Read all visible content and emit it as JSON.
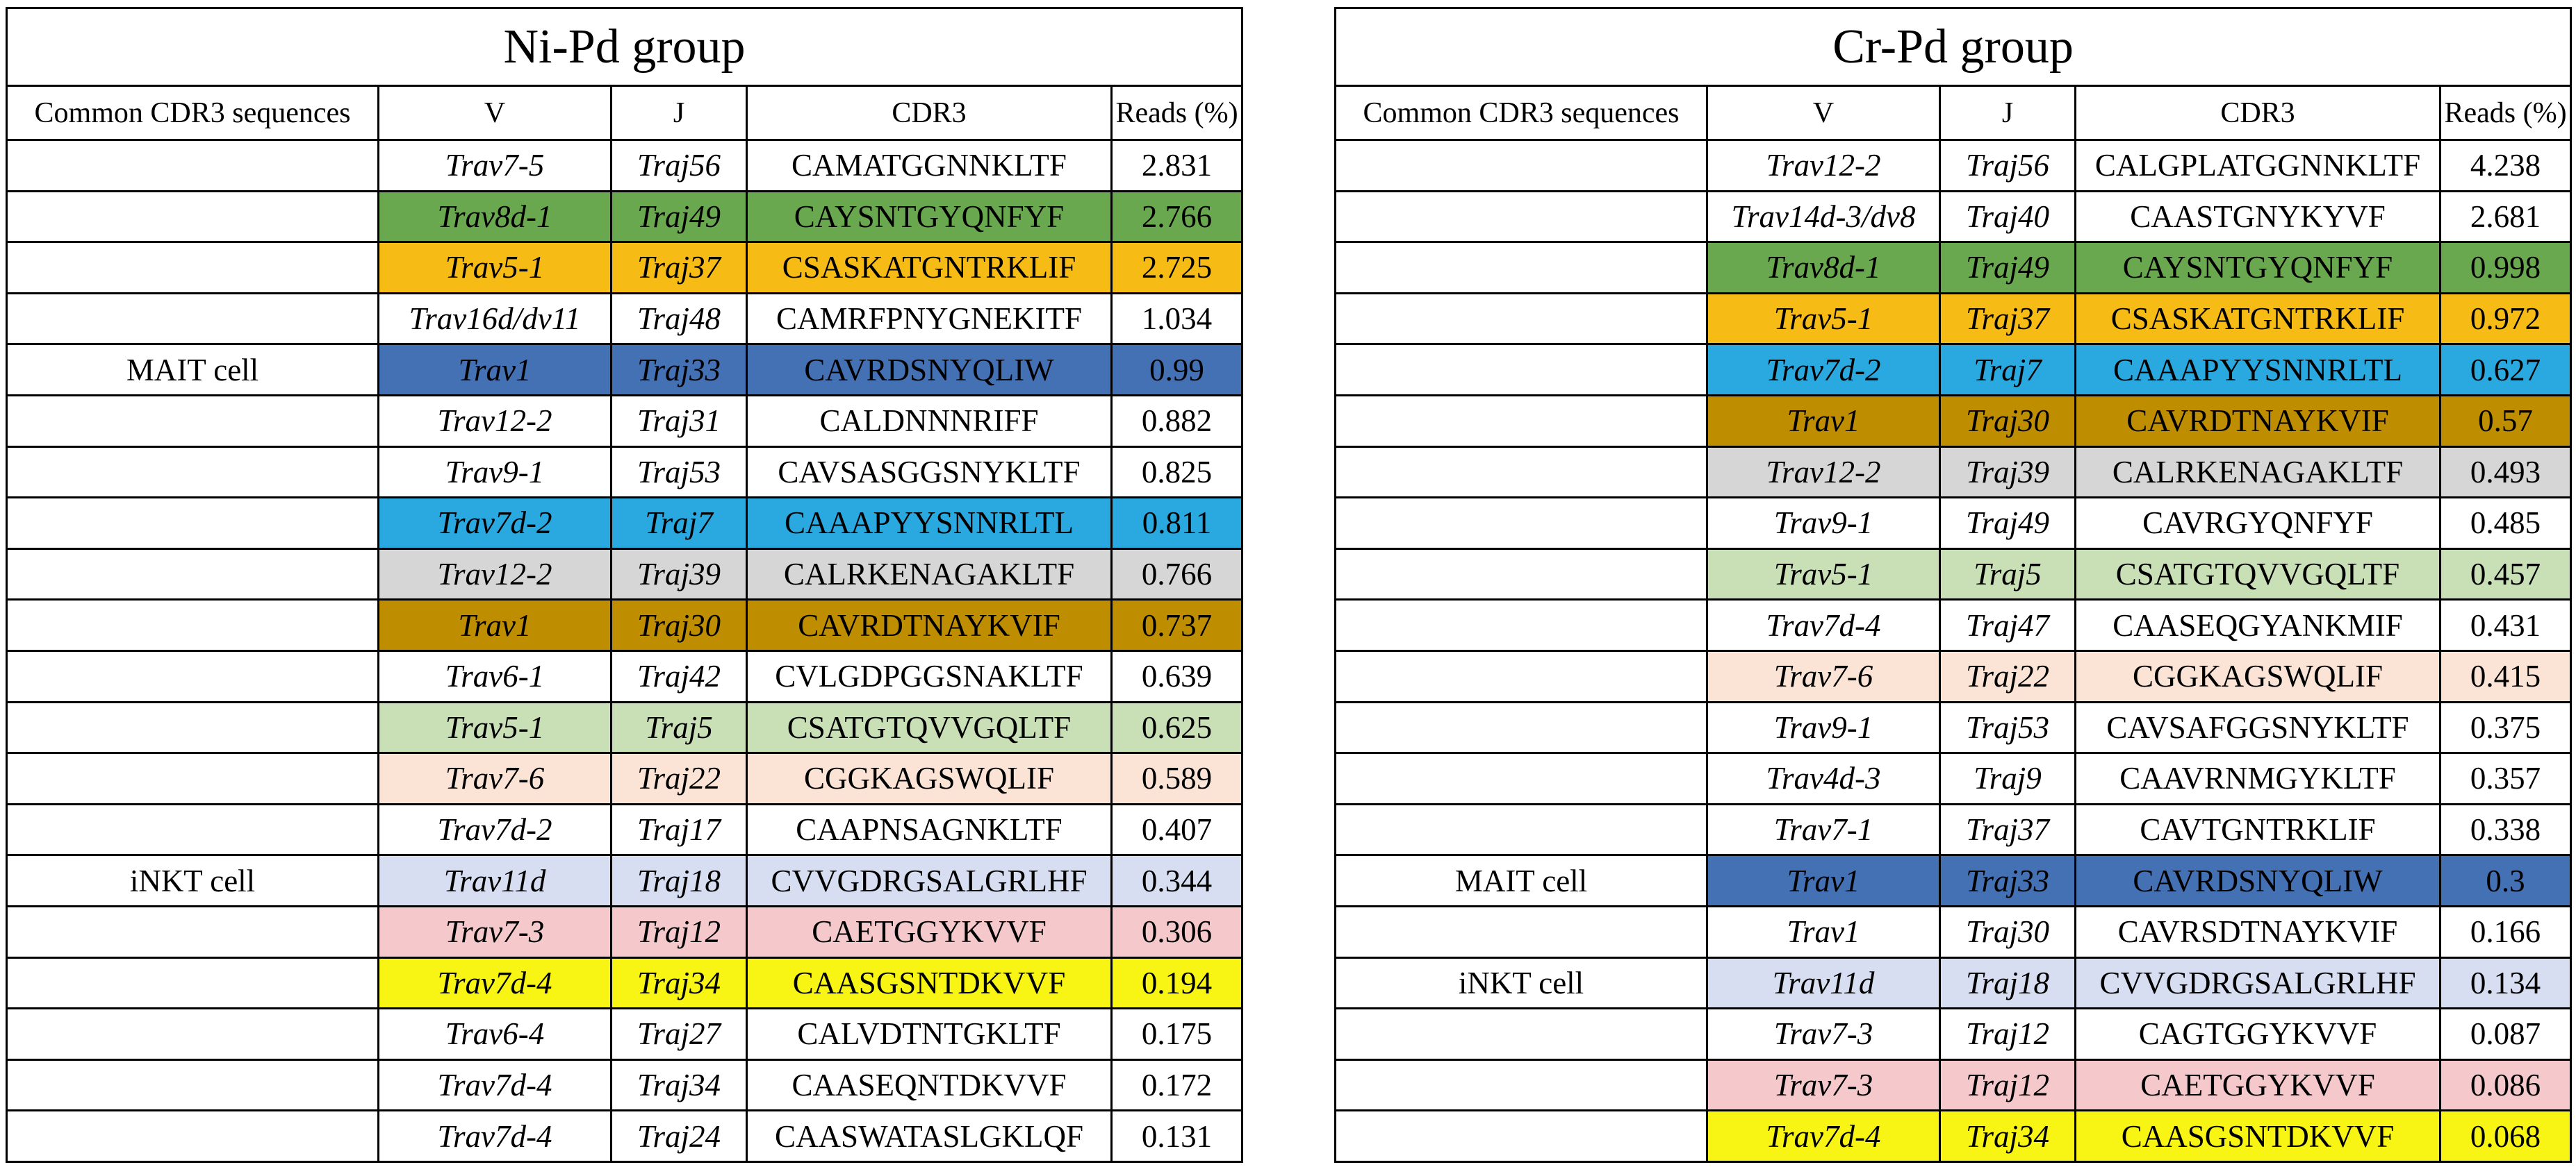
{
  "page": {
    "background": "#ffffff"
  },
  "highlight_palette": {
    "green": "#6AA84F",
    "amber": "#F6BB14",
    "mait_blue": "#4470B4",
    "cyan": "#29A9E0",
    "gray": "#D6D6D6",
    "gold": "#BE8E00",
    "light_green": "#C9E0B7",
    "peach": "#FBE4D5",
    "lavender": "#D7DEF1",
    "pink": "#F5C8CB",
    "yellow": "#F8F514"
  },
  "tables": [
    {
      "title": "Ni-Pd group",
      "columns": [
        "Common CDR3 sequences",
        "V",
        "J",
        "CDR3",
        "Reads (%)"
      ],
      "rows": [
        {
          "label": "",
          "v": "Trav7-5",
          "j": "Traj56",
          "cdr3": "CAMATGGNNKLTF",
          "reads": "2.831",
          "highlight": ""
        },
        {
          "label": "",
          "v": "Trav8d-1",
          "j": "Traj49",
          "cdr3": "CAYSNTGYQNFYF",
          "reads": "2.766",
          "highlight": "#6AA84F"
        },
        {
          "label": "",
          "v": "Trav5-1",
          "j": "Traj37",
          "cdr3": "CSASKATGNTRKLIF",
          "reads": "2.725",
          "highlight": "#F6BB14"
        },
        {
          "label": "",
          "v": "Trav16d/dv11",
          "j": "Traj48",
          "cdr3": "CAMRFPNYGNEKITF",
          "reads": "1.034",
          "highlight": ""
        },
        {
          "label": "MAIT cell",
          "v": "Trav1",
          "j": "Traj33",
          "cdr3": "CAVRDSNYQLIW",
          "reads": "0.99",
          "highlight": "#4470B4"
        },
        {
          "label": "",
          "v": "Trav12-2",
          "j": "Traj31",
          "cdr3": "CALDNNNRIFF",
          "reads": "0.882",
          "highlight": ""
        },
        {
          "label": "",
          "v": "Trav9-1",
          "j": "Traj53",
          "cdr3": "CAVSASGGSNYKLTF",
          "reads": "0.825",
          "highlight": ""
        },
        {
          "label": "",
          "v": "Trav7d-2",
          "j": "Traj7",
          "cdr3": "CAAAPYYSNNRLTL",
          "reads": "0.811",
          "highlight": "#29A9E0"
        },
        {
          "label": "",
          "v": "Trav12-2",
          "j": "Traj39",
          "cdr3": "CALRKENAGAKLTF",
          "reads": "0.766",
          "highlight": "#D6D6D6"
        },
        {
          "label": "",
          "v": "Trav1",
          "j": "Traj30",
          "cdr3": "CAVRDTNAYKVIF",
          "reads": "0.737",
          "highlight": "#BE8E00"
        },
        {
          "label": "",
          "v": "Trav6-1",
          "j": "Traj42",
          "cdr3": "CVLGDPGGSNAKLTF",
          "reads": "0.639",
          "highlight": ""
        },
        {
          "label": "",
          "v": "Trav5-1",
          "j": "Traj5",
          "cdr3": "CSATGTQVVGQLTF",
          "reads": "0.625",
          "highlight": "#C9E0B7"
        },
        {
          "label": "",
          "v": "Trav7-6",
          "j": "Traj22",
          "cdr3": "CGGKAGSWQLIF",
          "reads": "0.589",
          "highlight": "#FBE4D5"
        },
        {
          "label": "",
          "v": "Trav7d-2",
          "j": "Traj17",
          "cdr3": "CAAPNSAGNKLTF",
          "reads": "0.407",
          "highlight": ""
        },
        {
          "label": "iNKT cell",
          "v": "Trav11d",
          "j": "Traj18",
          "cdr3": "CVVGDRGSALGRLHF",
          "reads": "0.344",
          "highlight": "#D7DEF1"
        },
        {
          "label": "",
          "v": "Trav7-3",
          "j": "Traj12",
          "cdr3": "CAETGGYKVVF",
          "reads": "0.306",
          "highlight": "#F5C8CB"
        },
        {
          "label": "",
          "v": "Trav7d-4",
          "j": "Traj34",
          "cdr3": "CAASGSNTDKVVF",
          "reads": "0.194",
          "highlight": "#F8F514"
        },
        {
          "label": "",
          "v": "Trav6-4",
          "j": "Traj27",
          "cdr3": "CALVDTNTGKLTF",
          "reads": "0.175",
          "highlight": ""
        },
        {
          "label": "",
          "v": "Trav7d-4",
          "j": "Traj34",
          "cdr3": "CAASEQNTDKVVF",
          "reads": "0.172",
          "highlight": ""
        },
        {
          "label": "",
          "v": "Trav7d-4",
          "j": "Traj24",
          "cdr3": "CAASWATASLGKLQF",
          "reads": "0.131",
          "highlight": ""
        }
      ]
    },
    {
      "title": "Cr-Pd group",
      "columns": [
        "Common CDR3 sequences",
        "V",
        "J",
        "CDR3",
        "Reads (%)"
      ],
      "rows": [
        {
          "label": "",
          "v": "Trav12-2",
          "j": "Traj56",
          "cdr3": "CALGPLATGGNNKLTF",
          "reads": "4.238",
          "highlight": ""
        },
        {
          "label": "",
          "v": "Trav14d-3/dv8",
          "j": "Traj40",
          "cdr3": "CAASTGNYKYVF",
          "reads": "2.681",
          "highlight": ""
        },
        {
          "label": "",
          "v": "Trav8d-1",
          "j": "Traj49",
          "cdr3": "CAYSNTGYQNFYF",
          "reads": "0.998",
          "highlight": "#6AA84F"
        },
        {
          "label": "",
          "v": "Trav5-1",
          "j": "Traj37",
          "cdr3": "CSASKATGNTRKLIF",
          "reads": "0.972",
          "highlight": "#F6BB14"
        },
        {
          "label": "",
          "v": "Trav7d-2",
          "j": "Traj7",
          "cdr3": "CAAAPYYSNNRLTL",
          "reads": "0.627",
          "highlight": "#29A9E0"
        },
        {
          "label": "",
          "v": "Trav1",
          "j": "Traj30",
          "cdr3": "CAVRDTNAYKVIF",
          "reads": "0.57",
          "highlight": "#BE8E00"
        },
        {
          "label": "",
          "v": "Trav12-2",
          "j": "Traj39",
          "cdr3": "CALRKENAGAKLTF",
          "reads": "0.493",
          "highlight": "#D6D6D6"
        },
        {
          "label": "",
          "v": "Trav9-1",
          "j": "Traj49",
          "cdr3": "CAVRGYQNFYF",
          "reads": "0.485",
          "highlight": ""
        },
        {
          "label": "",
          "v": "Trav5-1",
          "j": "Traj5",
          "cdr3": "CSATGTQVVGQLTF",
          "reads": "0.457",
          "highlight": "#C9E0B7"
        },
        {
          "label": "",
          "v": "Trav7d-4",
          "j": "Traj47",
          "cdr3": "CAASEQGYANKMIF",
          "reads": "0.431",
          "highlight": ""
        },
        {
          "label": "",
          "v": "Trav7-6",
          "j": "Traj22",
          "cdr3": "CGGKAGSWQLIF",
          "reads": "0.415",
          "highlight": "#FBE4D5"
        },
        {
          "label": "",
          "v": "Trav9-1",
          "j": "Traj53",
          "cdr3": "CAVSAFGGSNYKLTF",
          "reads": "0.375",
          "highlight": ""
        },
        {
          "label": "",
          "v": "Trav4d-3",
          "j": "Traj9",
          "cdr3": "CAAVRNMGYKLTF",
          "reads": "0.357",
          "highlight": ""
        },
        {
          "label": "",
          "v": "Trav7-1",
          "j": "Traj37",
          "cdr3": "CAVTGNTRKLIF",
          "reads": "0.338",
          "highlight": ""
        },
        {
          "label": "MAIT cell",
          "v": "Trav1",
          "j": "Traj33",
          "cdr3": "CAVRDSNYQLIW",
          "reads": "0.3",
          "highlight": "#4470B4"
        },
        {
          "label": "",
          "v": "Trav1",
          "j": "Traj30",
          "cdr3": "CAVRSDTNAYKVIF",
          "reads": "0.166",
          "highlight": ""
        },
        {
          "label": "iNKT cell",
          "v": "Trav11d",
          "j": "Traj18",
          "cdr3": "CVVGDRGSALGRLHF",
          "reads": "0.134",
          "highlight": "#D7DEF1"
        },
        {
          "label": "",
          "v": "Trav7-3",
          "j": "Traj12",
          "cdr3": "CAGTGGYKVVF",
          "reads": "0.087",
          "highlight": ""
        },
        {
          "label": "",
          "v": "Trav7-3",
          "j": "Traj12",
          "cdr3": "CAETGGYKVVF",
          "reads": "0.086",
          "highlight": "#F5C8CB"
        },
        {
          "label": "",
          "v": "Trav7d-4",
          "j": "Traj34",
          "cdr3": "CAASGSNTDKVVF",
          "reads": "0.068",
          "highlight": "#F8F514"
        }
      ]
    }
  ]
}
